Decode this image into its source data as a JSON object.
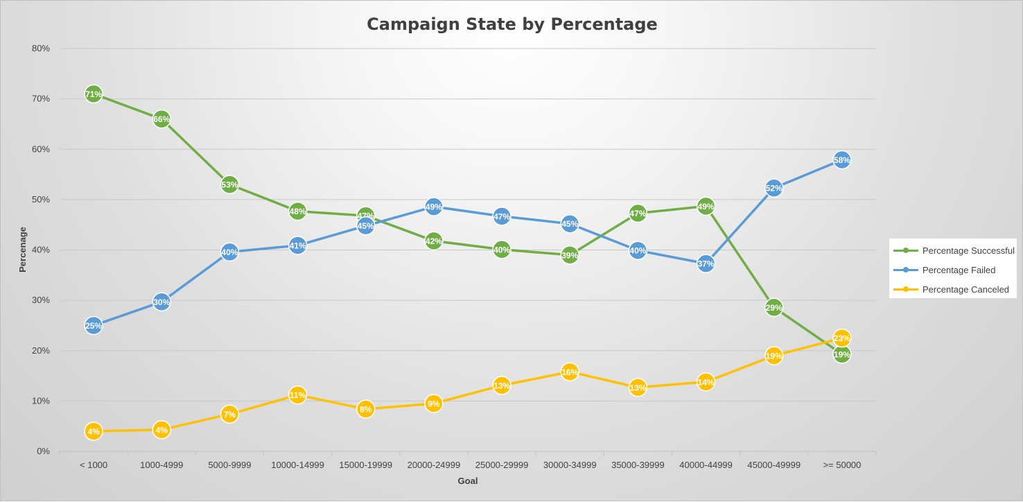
{
  "chart_data": {
    "type": "line",
    "title": "Campaign State by Percentage",
    "xlabel": "Goal",
    "ylabel": "Percenage",
    "categories": [
      "< 1000",
      "1000-4999",
      "5000-9999",
      "10000-14999",
      "15000-19999",
      "20000-24999",
      "25000-29999",
      "30000-34999",
      "35000-39999",
      "40000-44999",
      "45000-49999",
      ">= 50000"
    ],
    "ylim": [
      0,
      80
    ],
    "yticks": [
      "0%",
      "10%",
      "20%",
      "30%",
      "40%",
      "50%",
      "60%",
      "70%",
      "80%"
    ],
    "grid": true,
    "legend_position": "right",
    "series": [
      {
        "name": "Percentage Successful",
        "color": "#70ad47",
        "values": [
          71,
          66,
          53,
          47.7,
          46.8,
          41.8,
          40.1,
          39,
          47.3,
          48.7,
          28.6,
          19.3
        ],
        "labels": [
          "71%",
          "66%",
          "53%",
          "48%",
          "47%",
          "42%",
          "40%",
          "39%",
          "47%",
          "49%",
          "29%",
          "19%"
        ]
      },
      {
        "name": "Percentage Failed",
        "color": "#5b9bd5",
        "values": [
          25,
          29.7,
          39.6,
          40.9,
          44.8,
          48.6,
          46.7,
          45.2,
          39.9,
          37.3,
          52.3,
          57.9
        ],
        "labels": [
          "25%",
          "30%",
          "40%",
          "41%",
          "45%",
          "49%",
          "47%",
          "45%",
          "40%",
          "37%",
          "52%",
          "58%"
        ]
      },
      {
        "name": "Percentage Canceled",
        "color": "#ffc000",
        "values": [
          4,
          4.3,
          7.4,
          11.2,
          8.4,
          9.5,
          13.1,
          15.8,
          12.7,
          13.8,
          19,
          22.5
        ],
        "labels": [
          "4%",
          "4%",
          "7%",
          "11%",
          "8%",
          "9%",
          "13%",
          "16%",
          "13%",
          "14%",
          "19%",
          "23%"
        ]
      }
    ]
  }
}
